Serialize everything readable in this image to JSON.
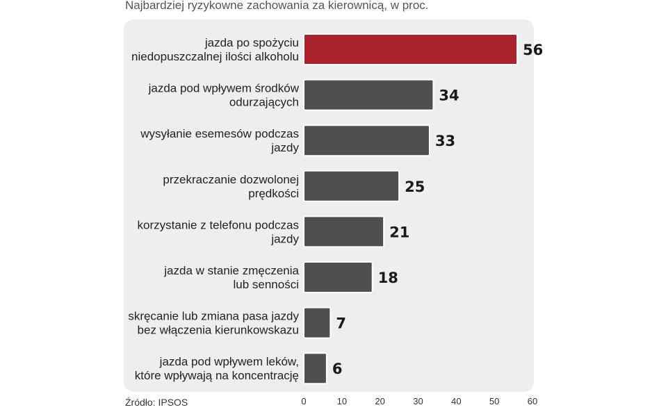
{
  "chart_data": {
    "type": "bar",
    "orientation": "horizontal",
    "title": "Najbardziej ryzykowne zachowania za kierownicą, w proc.",
    "categories": [
      [
        "jazda po spożyciu",
        "niedopuszczalnej ilości alkoholu"
      ],
      [
        "jazda pod wpływem środków",
        "odurzających"
      ],
      [
        "wysyłanie esemesów podczas",
        "jazdy"
      ],
      [
        "przekraczanie dozwolonej",
        "prędkości"
      ],
      [
        "korzystanie z telefonu podczas",
        "jazdy"
      ],
      [
        "jazda w stanie zmęczenia",
        "lub senności"
      ],
      [
        "skręcanie lub zmiana pasa jazdy",
        "bez włączenia kierunkowskazu"
      ],
      [
        "jazda pod wpływem leków,",
        "które wpływają na koncentrację"
      ]
    ],
    "values": [
      56,
      34,
      33,
      25,
      21,
      18,
      7,
      6
    ],
    "xlim": [
      0,
      60
    ],
    "xticks": [
      0,
      10,
      20,
      30,
      40,
      50,
      60
    ],
    "grid": false,
    "legend": "none",
    "source": "Źródło: IPSOS",
    "colors": {
      "highlight": "#a8232b",
      "bar": "#4f4f4f",
      "panel": "#eeeeee",
      "bar_outline": "#ffffff"
    }
  }
}
